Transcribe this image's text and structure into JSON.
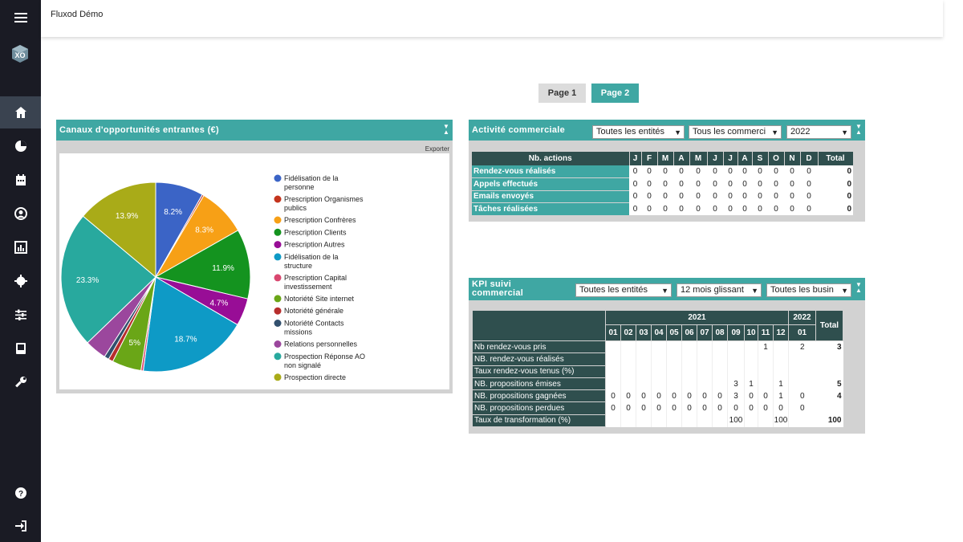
{
  "app": {
    "title": "Fluxod Démo"
  },
  "sidebar": {
    "logo_text": "XO",
    "items": [
      {
        "name": "home"
      },
      {
        "name": "pie"
      },
      {
        "name": "calendar"
      },
      {
        "name": "user"
      },
      {
        "name": "stats"
      },
      {
        "name": "settings"
      },
      {
        "name": "filters"
      },
      {
        "name": "book"
      },
      {
        "name": "wrench"
      }
    ],
    "bottom": [
      {
        "name": "help"
      },
      {
        "name": "logout"
      }
    ]
  },
  "pages": {
    "page1": "Page 1",
    "page2": "Page 2"
  },
  "panel_canaux": {
    "title": "Canaux d'opportunités entrantes (€)",
    "export": "Exporter"
  },
  "chart_data": {
    "type": "pie",
    "slices": [
      {
        "label": "Fidélisation de la personne",
        "value": 8.2,
        "color": "#3b64c6"
      },
      {
        "label": "Prescription Organismes publics",
        "value": 0.3,
        "color": "#c4341d"
      },
      {
        "label": "Prescription Confrères",
        "value": 8.3,
        "color": "#f7a016"
      },
      {
        "label": "Prescription Clients",
        "value": 11.9,
        "color": "#14931f"
      },
      {
        "label": "Prescription Autres",
        "value": 4.7,
        "color": "#980d96"
      },
      {
        "label": "Fidélisation de la structure",
        "value": 18.7,
        "color": "#0e9ac6"
      },
      {
        "label": "Prescription Capital investissement",
        "value": 0.4,
        "color": "#d9476f"
      },
      {
        "label": "Notoriété Site internet",
        "value": 5.0,
        "color": "#6aa617"
      },
      {
        "label": "Notoriété générale",
        "value": 0.8,
        "color": "#b72e2d"
      },
      {
        "label": "Notoriété Contacts missions",
        "value": 0.8,
        "color": "#32506e"
      },
      {
        "label": "Relations personnelles",
        "value": 3.7,
        "color": "#9b479d"
      },
      {
        "label": "Prospection Réponse AO non signalé",
        "value": 23.3,
        "color": "#28a99e"
      },
      {
        "label": "Prospection directe",
        "value": 13.9,
        "color": "#a9ab18"
      }
    ],
    "labels_shown": [
      "8.2%",
      "8.3%",
      "11.9%",
      "4.7%",
      "18.7%",
      "5%",
      "23.3%",
      "13.9%"
    ],
    "legend_position": "right"
  },
  "panel_activite": {
    "title": "Activité commerciale",
    "filters": [
      "Toutes les entités",
      "Tous les commerci",
      "2022"
    ],
    "header": [
      "Nb. actions",
      "J",
      "F",
      "M",
      "A",
      "M",
      "J",
      "J",
      "A",
      "S",
      "O",
      "N",
      "D",
      "Total"
    ],
    "rows": [
      {
        "label": "Rendez-vous réalisés",
        "values": [
          "0",
          "0",
          "0",
          "0",
          "0",
          "0",
          "0",
          "0",
          "0",
          "0",
          "0",
          "0"
        ],
        "total": "0"
      },
      {
        "label": "Appels effectués",
        "values": [
          "0",
          "0",
          "0",
          "0",
          "0",
          "0",
          "0",
          "0",
          "0",
          "0",
          "0",
          "0"
        ],
        "total": "0"
      },
      {
        "label": "Emails envoyés",
        "values": [
          "0",
          "0",
          "0",
          "0",
          "0",
          "0",
          "0",
          "0",
          "0",
          "0",
          "0",
          "0"
        ],
        "total": "0"
      },
      {
        "label": "Tâches réalisées",
        "values": [
          "0",
          "0",
          "0",
          "0",
          "0",
          "0",
          "0",
          "0",
          "0",
          "0",
          "0",
          "0"
        ],
        "total": "0"
      }
    ]
  },
  "panel_kpi": {
    "title": "KPI suivi commercial",
    "filters": [
      "Toutes les entités",
      "12 mois glissant",
      "Toutes les busin"
    ],
    "year_2021": "2021",
    "year_2022": "2022",
    "total": "Total",
    "months_2021": [
      "01",
      "02",
      "03",
      "04",
      "05",
      "06",
      "07",
      "08",
      "09",
      "10",
      "11",
      "12"
    ],
    "months_2022": [
      "01"
    ],
    "rows": [
      {
        "label": "Nb rendez-vous pris",
        "values": [
          "",
          "",
          "",
          "",
          "",
          "",
          "",
          "",
          "",
          "",
          "1",
          "",
          "2"
        ],
        "total": "3"
      },
      {
        "label": "NB. rendez-vous réalisés",
        "values": [
          "",
          "",
          "",
          "",
          "",
          "",
          "",
          "",
          "",
          "",
          "",
          "",
          ""
        ],
        "total": ""
      },
      {
        "label": "Taux rendez-vous tenus (%)",
        "values": [
          "",
          "",
          "",
          "",
          "",
          "",
          "",
          "",
          "",
          "",
          "",
          "",
          ""
        ],
        "total": ""
      },
      {
        "label": "NB. propositions émises",
        "values": [
          "",
          "",
          "",
          "",
          "",
          "",
          "",
          "",
          "3",
          "1",
          "",
          "1",
          ""
        ],
        "total": "5"
      },
      {
        "label": "NB. propositions gagnées",
        "values": [
          "0",
          "0",
          "0",
          "0",
          "0",
          "0",
          "0",
          "0",
          "3",
          "0",
          "0",
          "1",
          "0"
        ],
        "total": "4"
      },
      {
        "label": "NB. propositions perdues",
        "values": [
          "0",
          "0",
          "0",
          "0",
          "0",
          "0",
          "0",
          "0",
          "0",
          "0",
          "0",
          "0",
          "0"
        ],
        "total": ""
      },
      {
        "label": "Taux de transformation (%)",
        "values": [
          "",
          "",
          "",
          "",
          "",
          "",
          "",
          "",
          "100",
          "",
          "",
          "100",
          ""
        ],
        "total": "100"
      }
    ]
  }
}
